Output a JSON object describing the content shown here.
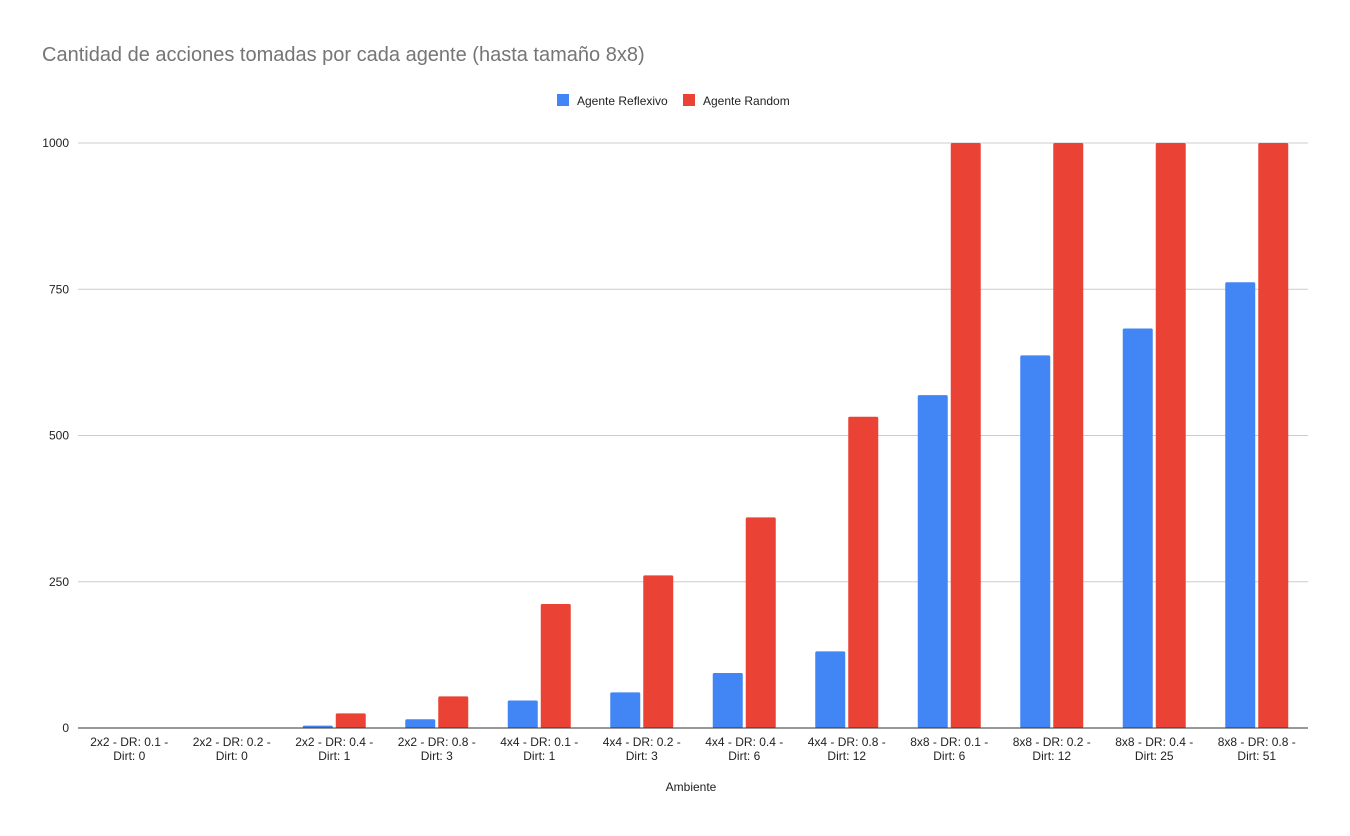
{
  "chart_data": {
    "type": "bar",
    "title": "Cantidad de acciones tomadas por cada agente (hasta tamaño 8x8)",
    "xlabel": "Ambiente",
    "ylabel": "",
    "ylim": [
      0,
      1000
    ],
    "yticks": [
      0,
      250,
      500,
      750,
      1000
    ],
    "grid": true,
    "legend_position": "top-center",
    "categories": [
      [
        "2x2 - DR: 0.1 -",
        "Dirt: 0"
      ],
      [
        "2x2 - DR: 0.2 -",
        "Dirt: 0"
      ],
      [
        "2x2 - DR: 0.4 -",
        "Dirt: 1"
      ],
      [
        "2x2 - DR: 0.8 -",
        "Dirt: 3"
      ],
      [
        "4x4 - DR: 0.1 -",
        "Dirt: 1"
      ],
      [
        "4x4 - DR: 0.2 -",
        "Dirt: 3"
      ],
      [
        "4x4 - DR: 0.4 -",
        "Dirt: 6"
      ],
      [
        "4x4 - DR: 0.8 -",
        "Dirt: 12"
      ],
      [
        "8x8 - DR: 0.1 -",
        "Dirt: 6"
      ],
      [
        "8x8 - DR: 0.2 -",
        "Dirt: 12"
      ],
      [
        "8x8 - DR: 0.4 -",
        "Dirt: 25"
      ],
      [
        "8x8 - DR: 0.8 -",
        "Dirt: 51"
      ]
    ],
    "series": [
      {
        "name": "Agente Reflexivo",
        "color": "#4285f4",
        "values": [
          0,
          0,
          4,
          15,
          47,
          61,
          94,
          131,
          569,
          637,
          683,
          762
        ]
      },
      {
        "name": "Agente Random",
        "color": "#ea4335",
        "values": [
          0,
          0,
          25,
          54,
          212,
          261,
          360,
          532,
          1000,
          1000,
          1000,
          1000
        ]
      }
    ]
  }
}
